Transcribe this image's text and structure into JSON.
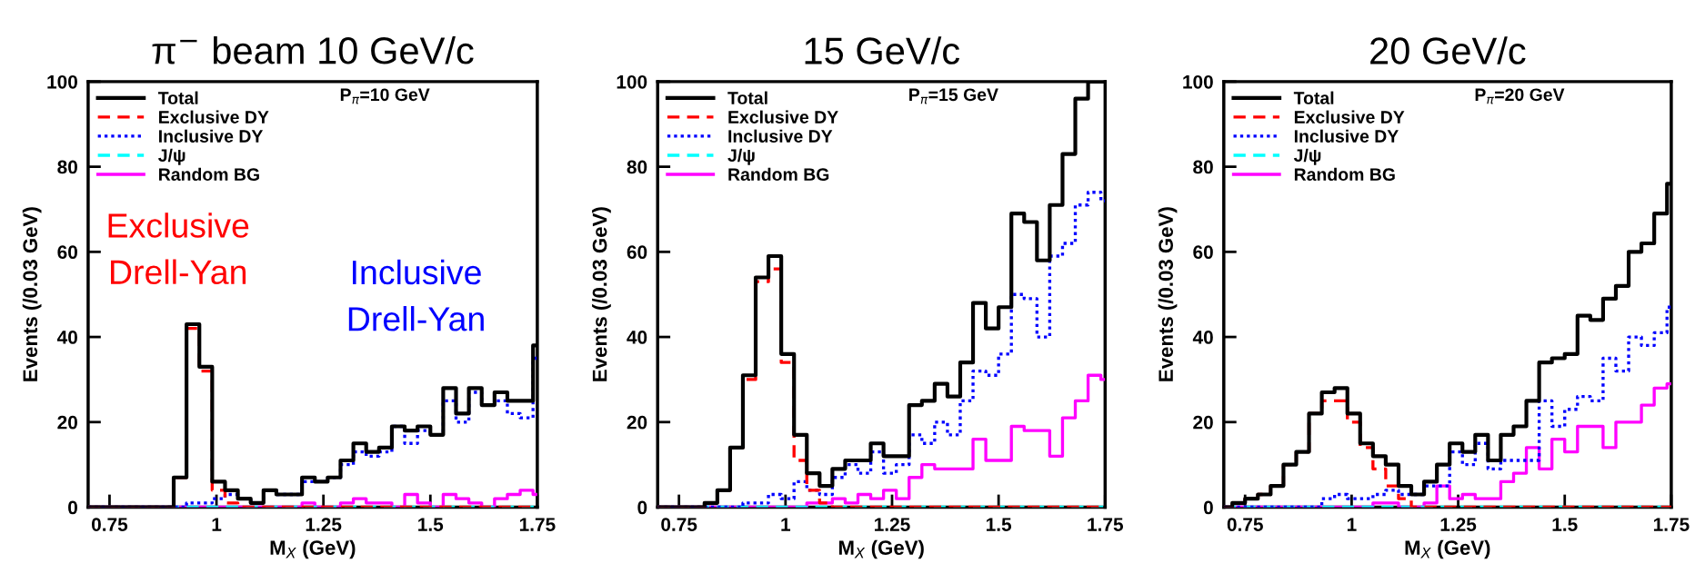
{
  "chart_data": [
    {
      "type": "histogram",
      "title": "π$^{−}$ beam 10 GeV/c",
      "xlabel": "M$_{X}$ (GeV)",
      "ylabel": "Events (/0.03 GeV)",
      "bins": [
        0.7,
        0.72,
        0.75,
        0.78,
        0.81,
        0.84,
        0.87,
        0.9,
        0.93,
        0.96,
        0.99,
        1.02,
        1.05,
        1.08,
        1.11,
        1.14,
        1.17,
        1.2,
        1.23,
        1.26,
        1.29,
        1.32,
        1.35,
        1.38,
        1.41,
        1.44,
        1.47,
        1.5,
        1.53,
        1.56,
        1.59,
        1.62,
        1.65,
        1.68,
        1.71,
        1.74,
        1.75
      ],
      "xlim": [
        0.7,
        1.75
      ],
      "ylim": [
        0,
        100
      ],
      "xticks": [
        0.75,
        1,
        1.25,
        1.5,
        1.75
      ],
      "yticks": [
        0,
        20,
        40,
        60,
        80,
        100
      ],
      "grid": false,
      "legend": "top left",
      "series": [
        {
          "name": "Total",
          "color": "#000000",
          "line_style": "solid",
          "values": [
            0,
            0,
            0,
            0,
            0,
            0,
            0,
            7,
            43,
            33,
            6,
            4,
            2,
            1,
            4,
            3,
            3,
            7,
            6,
            7,
            11,
            15,
            13,
            14,
            19,
            18,
            19,
            17,
            28,
            22,
            28,
            24,
            27,
            25,
            25,
            38
          ]
        },
        {
          "name": "Exclusive DY",
          "color": "#ff0000",
          "line_style": "dashed",
          "values": [
            0,
            0,
            0,
            0,
            0,
            0,
            0,
            7,
            42,
            32,
            4,
            1,
            0,
            0,
            0,
            0,
            0,
            0,
            0,
            0,
            0,
            0,
            0,
            0,
            0,
            0,
            0,
            0,
            0,
            0,
            0,
            0,
            0,
            0,
            0,
            0
          ]
        },
        {
          "name": "Inclusive DY",
          "color": "#0000ff",
          "line_style": "dotted",
          "values": [
            0,
            0,
            0,
            0,
            0,
            0,
            0,
            0,
            1,
            1,
            2,
            3,
            2,
            1,
            4,
            3,
            3,
            6,
            6,
            7,
            10,
            13,
            12,
            13,
            19,
            15,
            18,
            17,
            25,
            20,
            27,
            24,
            25,
            22,
            21,
            35
          ]
        },
        {
          "name": "J/ψ",
          "color": "#00ffff",
          "line_style": "dashed",
          "values": [
            0,
            0,
            0,
            0,
            0,
            0,
            0,
            0,
            0,
            0,
            0,
            0,
            0,
            0,
            0,
            0,
            0,
            0,
            0,
            0,
            0,
            0,
            0,
            0,
            0,
            0,
            0,
            0,
            0,
            0,
            0,
            0,
            0,
            0,
            0,
            0
          ]
        },
        {
          "name": "Random BG",
          "color": "#ff00ff",
          "line_style": "solid",
          "values": [
            0,
            0,
            0,
            0,
            0,
            0,
            0,
            0,
            0,
            0,
            0,
            0,
            0,
            0,
            0,
            0,
            0,
            1,
            0,
            0,
            1,
            2,
            1,
            1,
            0,
            3,
            1,
            0,
            3,
            2,
            1,
            0,
            2,
            3,
            4,
            3
          ]
        }
      ],
      "annotations": [
        "P$_{π}$=10 GeV",
        "Exclusive\nDrell-Yan",
        "Inclusive\nDrell-Yan"
      ]
    },
    {
      "type": "histogram",
      "title": "15 GeV/c",
      "xlabel": "M$_{X}$ (GeV)",
      "ylabel": "Events (/0.03 GeV)",
      "bins": [
        0.7,
        0.72,
        0.75,
        0.78,
        0.81,
        0.84,
        0.87,
        0.9,
        0.93,
        0.96,
        0.99,
        1.02,
        1.05,
        1.08,
        1.11,
        1.14,
        1.17,
        1.2,
        1.23,
        1.26,
        1.29,
        1.32,
        1.35,
        1.38,
        1.41,
        1.44,
        1.47,
        1.5,
        1.53,
        1.56,
        1.59,
        1.62,
        1.65,
        1.68,
        1.71,
        1.74,
        1.75
      ],
      "xlim": [
        0.7,
        1.75
      ],
      "ylim": [
        0,
        100
      ],
      "xticks": [
        0.75,
        1,
        1.25,
        1.5,
        1.75
      ],
      "yticks": [
        0,
        20,
        40,
        60,
        80,
        100
      ],
      "grid": false,
      "legend": "top left",
      "series": [
        {
          "name": "Total",
          "color": "#000000",
          "line_style": "solid",
          "values": [
            0,
            0,
            0,
            0,
            1,
            4,
            14,
            31,
            54,
            59,
            36,
            17,
            8,
            5,
            9,
            11,
            11,
            15,
            12,
            12,
            24,
            25,
            29,
            26,
            34,
            48,
            42,
            47,
            69,
            67,
            58,
            71,
            83,
            96,
            100,
            100
          ]
        },
        {
          "name": "Exclusive DY",
          "color": "#ff0000",
          "line_style": "dashed",
          "values": [
            0,
            0,
            0,
            0,
            1,
            4,
            14,
            30,
            53,
            56,
            34,
            11,
            4,
            1,
            0,
            0,
            0,
            0,
            0,
            0,
            0,
            0,
            0,
            0,
            0,
            0,
            0,
            0,
            0,
            0,
            0,
            0,
            0,
            0,
            0,
            0
          ]
        },
        {
          "name": "Inclusive DY",
          "color": "#0000ff",
          "line_style": "dotted",
          "values": [
            0,
            0,
            0,
            0,
            0,
            0,
            0,
            1,
            1,
            3,
            2,
            6,
            4,
            3,
            7,
            10,
            8,
            13,
            8,
            10,
            17,
            15,
            20,
            17,
            25,
            32,
            31,
            36,
            50,
            49,
            40,
            59,
            62,
            71,
            74,
            72
          ]
        },
        {
          "name": "J/ψ",
          "color": "#00ffff",
          "line_style": "dashed",
          "values": [
            0,
            0,
            0,
            0,
            0,
            0,
            0,
            0,
            0,
            0,
            0,
            0,
            0,
            0,
            0,
            0,
            0,
            0,
            0,
            0,
            0,
            0,
            0,
            0,
            0,
            0,
            0,
            0,
            0,
            0,
            0,
            0,
            0,
            0,
            0,
            0
          ]
        },
        {
          "name": "Random BG",
          "color": "#ff00ff",
          "line_style": "solid",
          "values": [
            0,
            0,
            0,
            0,
            0,
            0,
            0,
            0,
            0,
            0,
            0,
            0,
            1,
            1,
            2,
            1,
            3,
            2,
            4,
            2,
            7,
            10,
            9,
            9,
            9,
            16,
            11,
            11,
            19,
            18,
            18,
            12,
            21,
            25,
            31,
            30
          ]
        }
      ],
      "annotations": [
        "P$_{π}$=15 GeV"
      ]
    },
    {
      "type": "histogram",
      "title": "20 GeV/c",
      "xlabel": "M$_{X}$ (GeV)",
      "ylabel": "Events (/0.03 GeV)",
      "bins": [
        0.7,
        0.72,
        0.75,
        0.78,
        0.81,
        0.84,
        0.87,
        0.9,
        0.93,
        0.96,
        0.99,
        1.02,
        1.05,
        1.08,
        1.11,
        1.14,
        1.17,
        1.2,
        1.23,
        1.26,
        1.29,
        1.32,
        1.35,
        1.38,
        1.41,
        1.44,
        1.47,
        1.5,
        1.53,
        1.56,
        1.59,
        1.62,
        1.65,
        1.68,
        1.71,
        1.74,
        1.75
      ],
      "xlim": [
        0.7,
        1.75
      ],
      "ylim": [
        0,
        100
      ],
      "xticks": [
        0.75,
        1,
        1.25,
        1.5,
        1.75
      ],
      "yticks": [
        0,
        20,
        40,
        60,
        80,
        100
      ],
      "grid": false,
      "legend": "top left",
      "series": [
        {
          "name": "Total",
          "color": "#000000",
          "line_style": "solid",
          "values": [
            0,
            1,
            2,
            3,
            5,
            10,
            13,
            22,
            27,
            28,
            22,
            15,
            12,
            10,
            5,
            3,
            6,
            10,
            15,
            13,
            17,
            11,
            17,
            19,
            25,
            34,
            35,
            36,
            45,
            44,
            49,
            52,
            60,
            62,
            69,
            76
          ]
        },
        {
          "name": "Exclusive DY",
          "color": "#ff0000",
          "line_style": "dashed",
          "values": [
            0,
            1,
            2,
            3,
            5,
            10,
            13,
            22,
            25,
            25,
            20,
            14,
            9,
            5,
            2,
            0,
            0,
            0,
            0,
            0,
            0,
            0,
            0,
            0,
            0,
            0,
            0,
            0,
            0,
            0,
            0,
            0,
            0,
            0,
            0,
            0
          ]
        },
        {
          "name": "Inclusive DY",
          "color": "#0000ff",
          "line_style": "dotted",
          "values": [
            0,
            0,
            0,
            0,
            0,
            0,
            0,
            0,
            2,
            3,
            2,
            2,
            3,
            4,
            3,
            3,
            5,
            5,
            13,
            10,
            15,
            9,
            11,
            11,
            11,
            25,
            19,
            23,
            26,
            25,
            35,
            32,
            40,
            38,
            41,
            47
          ]
        },
        {
          "name": "J/ψ",
          "color": "#00ffff",
          "line_style": "dashed",
          "values": [
            0,
            0,
            0,
            0,
            0,
            0,
            0,
            0,
            0,
            0,
            0,
            0,
            0,
            0,
            0,
            0,
            0,
            0,
            0,
            0,
            0,
            0,
            0,
            0,
            0,
            0,
            0,
            0,
            0,
            0,
            0,
            0,
            0,
            0,
            0,
            0
          ]
        },
        {
          "name": "Random BG",
          "color": "#ff00ff",
          "line_style": "solid",
          "values": [
            0,
            0,
            0,
            0,
            0,
            0,
            0,
            0,
            0,
            0,
            0,
            0,
            1,
            1,
            0,
            0,
            1,
            5,
            2,
            3,
            2,
            2,
            6,
            8,
            14,
            9,
            16,
            13,
            19,
            19,
            14,
            20,
            20,
            24,
            28,
            29
          ]
        }
      ],
      "annotations": [
        "P$_{π}$=20 GeV"
      ]
    }
  ]
}
